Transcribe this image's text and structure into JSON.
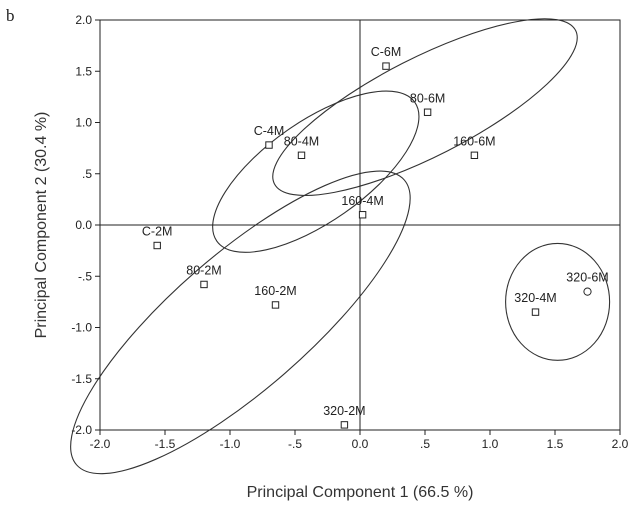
{
  "panel_label": "b",
  "chart_data": {
    "type": "scatter",
    "xlabel": "Principal Component 1 (66.5 %)",
    "ylabel": "Principal Component 2 (30.4 %)",
    "xlim": [
      -2.0,
      2.0
    ],
    "ylim": [
      -2.0,
      2.0
    ],
    "x_ticks": [
      "-2.0",
      "-1.5",
      "-1.0",
      "-.5",
      "0.0",
      ".5",
      "1.0",
      "1.5",
      "2.0"
    ],
    "y_ticks": [
      "2.0",
      "1.5",
      "1.0",
      ".5",
      "0.0",
      "-.5",
      "-1.0",
      "-1.5",
      "-2.0"
    ],
    "grid": false,
    "zero_lines": true,
    "points": [
      {
        "label": "C-6M",
        "x": 0.2,
        "y": 1.55,
        "marker": "square"
      },
      {
        "label": "80-6M",
        "x": 0.52,
        "y": 1.1,
        "marker": "square"
      },
      {
        "label": "160-6M",
        "x": 0.88,
        "y": 0.68,
        "marker": "square"
      },
      {
        "label": "C-4M",
        "x": -0.7,
        "y": 0.78,
        "marker": "square"
      },
      {
        "label": "80-4M",
        "x": -0.45,
        "y": 0.68,
        "marker": "square"
      },
      {
        "label": "160-4M",
        "x": 0.02,
        "y": 0.1,
        "marker": "square"
      },
      {
        "label": "C-2M",
        "x": -1.56,
        "y": -0.2,
        "marker": "square"
      },
      {
        "label": "80-2M",
        "x": -1.2,
        "y": -0.58,
        "marker": "square"
      },
      {
        "label": "160-2M",
        "x": -0.65,
        "y": -0.78,
        "marker": "square"
      },
      {
        "label": "320-2M",
        "x": -0.12,
        "y": -1.95,
        "marker": "square"
      },
      {
        "label": "320-4M",
        "x": 1.35,
        "y": -0.85,
        "marker": "square"
      },
      {
        "label": "320-6M",
        "x": 1.75,
        "y": -0.65,
        "marker": "circle"
      }
    ],
    "ellipses": [
      {
        "cx": 0.5,
        "cy": 1.15,
        "rx": 1.3,
        "ry": 0.48,
        "angle_deg": 27
      },
      {
        "cx": -0.34,
        "cy": 0.52,
        "rx": 0.93,
        "ry": 0.49,
        "angle_deg": 35
      },
      {
        "cx": -0.92,
        "cy": -0.95,
        "rx": 1.67,
        "ry": 0.66,
        "angle_deg": 41
      },
      {
        "cx": 1.52,
        "cy": -0.75,
        "rx": 0.4,
        "ry": 0.57,
        "angle_deg": 0
      }
    ]
  }
}
